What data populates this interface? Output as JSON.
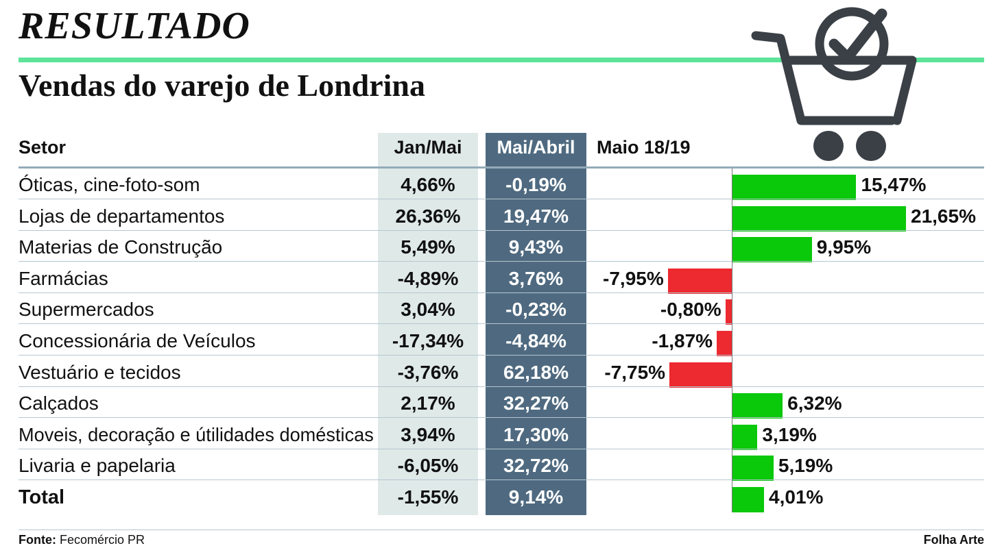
{
  "kicker": "RESULTADO",
  "headline": "Vendas do varejo de Londrina",
  "icon": "shopping-cart-check-icon",
  "colors": {
    "accent_line": "#5ee39a",
    "jan_column_bg": "#dfe9e8",
    "mai_column_bg": "#4f6a80",
    "positive_bar": "#0ac80a",
    "negative_bar": "#ec2a30",
    "cart_icon": "#3a4046"
  },
  "chart_data": {
    "type": "table",
    "columns": {
      "setor": "Setor",
      "jan_mai": "Jan/Mai",
      "mai_abril": "Mai/Abril",
      "maio": "Maio 18/19"
    },
    "bar_column": "Maio 18/19",
    "bar_scale_max": 21.65,
    "rows": [
      {
        "setor": "Óticas, cine-foto-som",
        "jan_mai": "4,66%",
        "mai_abril": "-0,19%",
        "maio_label": "15,47%",
        "maio": 15.47
      },
      {
        "setor": "Lojas de departamentos",
        "jan_mai": "26,36%",
        "mai_abril": "19,47%",
        "maio_label": "21,65%",
        "maio": 21.65
      },
      {
        "setor": "Materias de Construção",
        "jan_mai": "5,49%",
        "mai_abril": "9,43%",
        "maio_label": "9,95%",
        "maio": 9.95
      },
      {
        "setor": "Farmácias",
        "jan_mai": "-4,89%",
        "mai_abril": "3,76%",
        "maio_label": "-7,95%",
        "maio": -7.95
      },
      {
        "setor": "Supermercados",
        "jan_mai": "3,04%",
        "mai_abril": "-0,23%",
        "maio_label": "-0,80%",
        "maio": -0.8
      },
      {
        "setor": "Concessionária de Veículos",
        "jan_mai": "-17,34%",
        "mai_abril": "-4,84%",
        "maio_label": "-1,87%",
        "maio": -1.87
      },
      {
        "setor": "Vestuário e tecidos",
        "jan_mai": "-3,76%",
        "mai_abril": "62,18%",
        "maio_label": "-7,75%",
        "maio": -7.75
      },
      {
        "setor": "Calçados",
        "jan_mai": "2,17%",
        "mai_abril": "32,27%",
        "maio_label": "6,32%",
        "maio": 6.32
      },
      {
        "setor": "Moveis, decoração e útilidades domésticas",
        "jan_mai": "3,94%",
        "mai_abril": "17,30%",
        "maio_label": "3,19%",
        "maio": 3.19
      },
      {
        "setor": "Livaria e papelaria",
        "jan_mai": "-6,05%",
        "mai_abril": "32,72%",
        "maio_label": "5,19%",
        "maio": 5.19
      },
      {
        "setor": "Total",
        "jan_mai": "-1,55%",
        "mai_abril": "9,14%",
        "maio_label": "4,01%",
        "maio": 4.01,
        "is_total": true
      }
    ]
  },
  "footer": {
    "source_label": "Fonte:",
    "source_value": "Fecomércio PR",
    "credit": "Folha Arte"
  }
}
